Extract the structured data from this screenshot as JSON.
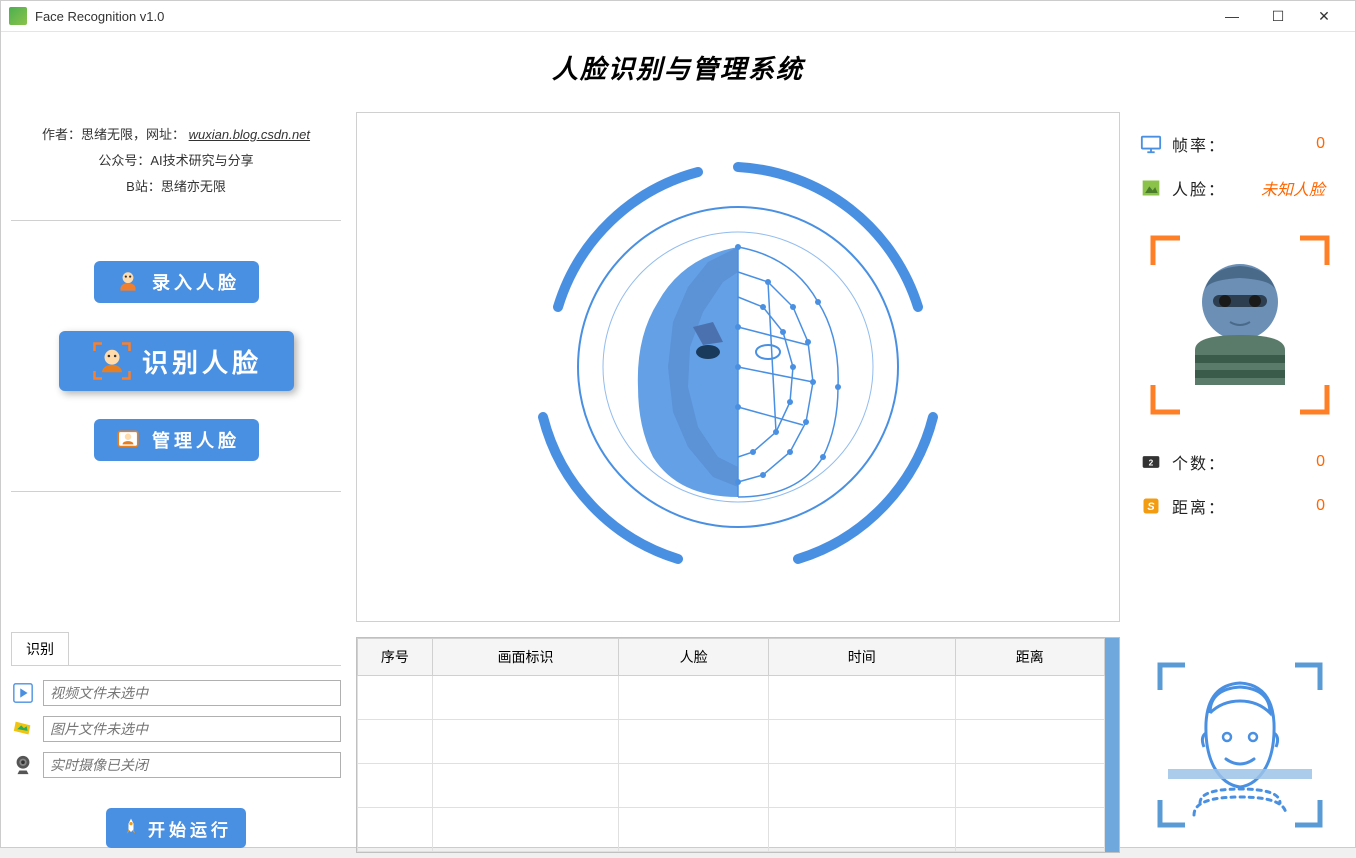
{
  "window": {
    "title": "Face Recognition v1.0"
  },
  "header": {
    "title": "人脸识别与管理系统"
  },
  "author": {
    "line1_prefix": "作者：思绪无限，网址：",
    "line1_link": "wuxian.blog.csdn.net",
    "line2": "公众号：AI技术研究与分享",
    "line3": "B站：思绪亦无限"
  },
  "nav": {
    "enroll": "录入人脸",
    "recognize": "识别人脸",
    "manage": "管理人脸"
  },
  "stats": {
    "fps_label": "帧率：",
    "fps_value": "0",
    "face_label": "人脸：",
    "face_value": "未知人脸",
    "count_label": "个数：",
    "count_value": "0",
    "distance_label": "距离：",
    "distance_value": "0"
  },
  "tabs": {
    "recognize": "识别"
  },
  "inputs": {
    "video_placeholder": "视频文件未选中",
    "image_placeholder": "图片文件未选中",
    "camera_placeholder": "实时摄像已关闭"
  },
  "start_button": "开始运行",
  "table": {
    "columns": [
      "序号",
      "画面标识",
      "人脸",
      "时间",
      "距离"
    ],
    "rows": [
      [
        "",
        "",
        "",
        "",
        ""
      ],
      [
        "",
        "",
        "",
        "",
        ""
      ],
      [
        "",
        "",
        "",
        "",
        ""
      ],
      [
        "",
        "",
        "",
        "",
        ""
      ]
    ]
  },
  "colors": {
    "primary": "#4a90e2",
    "accent": "#ff6600",
    "scan_bracket": "#ff7f27"
  }
}
